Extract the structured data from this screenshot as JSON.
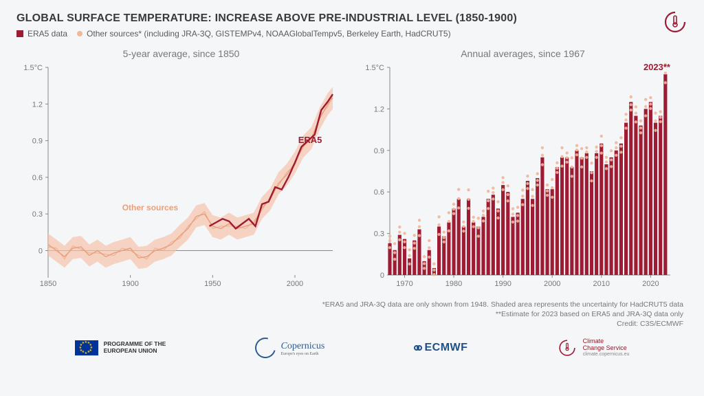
{
  "colors": {
    "background": "#f4f6f8",
    "era5": "#9e1b34",
    "other_fill": "#f5c3a9",
    "other_line": "#e89f7a",
    "text_muted": "#777777",
    "ecmwf_blue": "#1e4f8a",
    "eu_blue": "#003399",
    "eu_gold": "#ffcc00"
  },
  "header": {
    "title": "GLOBAL SURFACE TEMPERATURE: INCREASE ABOVE PRE-INDUSTRIAL LEVEL (1850-1900)",
    "legend_era5": "ERA5 data",
    "legend_other": "Other sources* (including JRA-3Q, GISTEMPv4, NOAAGlobalTempv5, Berkeley Earth, HadCRUT5)"
  },
  "left_chart": {
    "title": "5-year average, since 1850",
    "type": "line",
    "xlim": [
      1850,
      2023
    ],
    "ylim": [
      -0.2,
      1.5
    ],
    "xticks": [
      1850,
      1900,
      1950,
      2000
    ],
    "yticks": [
      0,
      0.3,
      0.6,
      0.9,
      1.2,
      1.5
    ],
    "yunit": "°C",
    "era5_label": "ERA5",
    "other_label": "Other sources",
    "other_mid": [
      [
        1850,
        0.05
      ],
      [
        1855,
        0.0
      ],
      [
        1860,
        -0.05
      ],
      [
        1865,
        0.02
      ],
      [
        1870,
        0.03
      ],
      [
        1875,
        -0.04
      ],
      [
        1880,
        0.0
      ],
      [
        1885,
        -0.05
      ],
      [
        1890,
        -0.02
      ],
      [
        1895,
        0.0
      ],
      [
        1900,
        0.02
      ],
      [
        1905,
        -0.06
      ],
      [
        1910,
        -0.05
      ],
      [
        1915,
        0.0
      ],
      [
        1920,
        0.02
      ],
      [
        1925,
        0.05
      ],
      [
        1930,
        0.12
      ],
      [
        1935,
        0.18
      ],
      [
        1940,
        0.28
      ],
      [
        1945,
        0.3
      ],
      [
        1950,
        0.2
      ],
      [
        1955,
        0.18
      ],
      [
        1960,
        0.22
      ],
      [
        1965,
        0.18
      ],
      [
        1970,
        0.2
      ],
      [
        1975,
        0.22
      ],
      [
        1980,
        0.35
      ],
      [
        1985,
        0.42
      ],
      [
        1990,
        0.55
      ],
      [
        1995,
        0.62
      ],
      [
        2000,
        0.72
      ],
      [
        2005,
        0.85
      ],
      [
        2010,
        0.92
      ],
      [
        2015,
        1.08
      ],
      [
        2020,
        1.2
      ],
      [
        2023,
        1.25
      ]
    ],
    "other_band_half": 0.09,
    "era5": [
      [
        1948,
        0.2
      ],
      [
        1952,
        0.23
      ],
      [
        1956,
        0.26
      ],
      [
        1960,
        0.24
      ],
      [
        1964,
        0.18
      ],
      [
        1968,
        0.22
      ],
      [
        1972,
        0.26
      ],
      [
        1976,
        0.2
      ],
      [
        1980,
        0.38
      ],
      [
        1984,
        0.4
      ],
      [
        1988,
        0.52
      ],
      [
        1992,
        0.5
      ],
      [
        1996,
        0.6
      ],
      [
        2000,
        0.72
      ],
      [
        2004,
        0.85
      ],
      [
        2008,
        0.9
      ],
      [
        2012,
        0.95
      ],
      [
        2016,
        1.15
      ],
      [
        2020,
        1.22
      ],
      [
        2023,
        1.28
      ]
    ]
  },
  "right_chart": {
    "title": "Annual averages, since 1967",
    "type": "bar",
    "xlim": [
      1967,
      2024
    ],
    "ylim": [
      0,
      1.5
    ],
    "xticks": [
      1970,
      1980,
      1990,
      2000,
      2010,
      2020
    ],
    "yticks": [
      0,
      0.3,
      0.6,
      0.9,
      1.2,
      1.5
    ],
    "yunit": "°C",
    "callout_label": "2023**",
    "bar_color": "#9e1b34",
    "dot_color": "#f0b79a",
    "bars": [
      {
        "y": 1967,
        "v": 0.23
      },
      {
        "y": 1968,
        "v": 0.18
      },
      {
        "y": 1969,
        "v": 0.29
      },
      {
        "y": 1970,
        "v": 0.26
      },
      {
        "y": 1971,
        "v": 0.12
      },
      {
        "y": 1972,
        "v": 0.25
      },
      {
        "y": 1973,
        "v": 0.33
      },
      {
        "y": 1974,
        "v": 0.1
      },
      {
        "y": 1975,
        "v": 0.18
      },
      {
        "y": 1976,
        "v": 0.05
      },
      {
        "y": 1977,
        "v": 0.35
      },
      {
        "y": 1978,
        "v": 0.28
      },
      {
        "y": 1979,
        "v": 0.38
      },
      {
        "y": 1980,
        "v": 0.48
      },
      {
        "y": 1981,
        "v": 0.55
      },
      {
        "y": 1982,
        "v": 0.35
      },
      {
        "y": 1983,
        "v": 0.55
      },
      {
        "y": 1984,
        "v": 0.38
      },
      {
        "y": 1985,
        "v": 0.35
      },
      {
        "y": 1986,
        "v": 0.42
      },
      {
        "y": 1987,
        "v": 0.55
      },
      {
        "y": 1988,
        "v": 0.58
      },
      {
        "y": 1989,
        "v": 0.48
      },
      {
        "y": 1990,
        "v": 0.65
      },
      {
        "y": 1991,
        "v": 0.6
      },
      {
        "y": 1992,
        "v": 0.42
      },
      {
        "y": 1993,
        "v": 0.45
      },
      {
        "y": 1994,
        "v": 0.55
      },
      {
        "y": 1995,
        "v": 0.68
      },
      {
        "y": 1996,
        "v": 0.55
      },
      {
        "y": 1997,
        "v": 0.7
      },
      {
        "y": 1998,
        "v": 0.85
      },
      {
        "y": 1999,
        "v": 0.62
      },
      {
        "y": 2000,
        "v": 0.62
      },
      {
        "y": 2001,
        "v": 0.78
      },
      {
        "y": 2002,
        "v": 0.85
      },
      {
        "y": 2003,
        "v": 0.85
      },
      {
        "y": 2004,
        "v": 0.78
      },
      {
        "y": 2005,
        "v": 0.9
      },
      {
        "y": 2006,
        "v": 0.85
      },
      {
        "y": 2007,
        "v": 0.88
      },
      {
        "y": 2008,
        "v": 0.75
      },
      {
        "y": 2009,
        "v": 0.88
      },
      {
        "y": 2010,
        "v": 0.95
      },
      {
        "y": 2011,
        "v": 0.8
      },
      {
        "y": 2012,
        "v": 0.85
      },
      {
        "y": 2013,
        "v": 0.9
      },
      {
        "y": 2014,
        "v": 0.95
      },
      {
        "y": 2015,
        "v": 1.1
      },
      {
        "y": 2016,
        "v": 1.25
      },
      {
        "y": 2017,
        "v": 1.15
      },
      {
        "y": 2018,
        "v": 1.08
      },
      {
        "y": 2019,
        "v": 1.2
      },
      {
        "y": 2020,
        "v": 1.25
      },
      {
        "y": 2021,
        "v": 1.1
      },
      {
        "y": 2022,
        "v": 1.15
      },
      {
        "y": 2023,
        "v": 1.45
      }
    ],
    "dot_spread": 0.05
  },
  "footnotes": {
    "l1": "*ERA5 and JRA-3Q data are only shown from 1948. Shaded area represents the uncertainty for HadCRUT5 data",
    "l2": "**Estimate for 2023 based on ERA5 and JRA-3Q data only",
    "l3": "Credit: C3S/ECMWF"
  },
  "logos": {
    "eu_line1": "PROGRAMME OF THE",
    "eu_line2": "EUROPEAN UNION",
    "copernicus": "opernicus",
    "copernicus_c": "C",
    "copernicus_sub": "Europe's eyes on Earth",
    "ecmwf": "ECMWF",
    "c3s_l1": "Climate",
    "c3s_l2": "Change Service",
    "c3s_url": "climate.copernicus.eu"
  }
}
